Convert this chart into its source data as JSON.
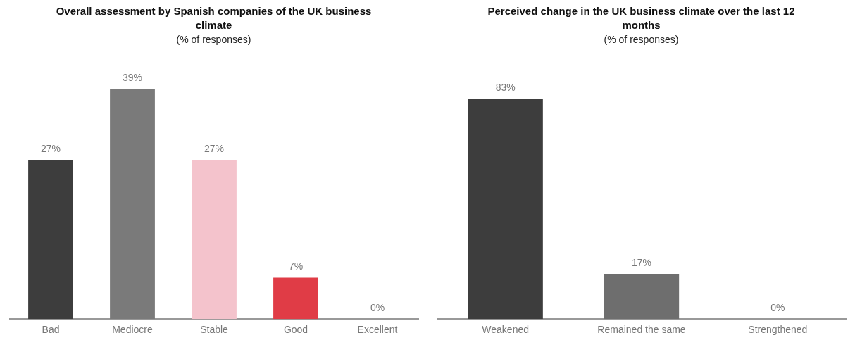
{
  "chart_data": [
    {
      "type": "bar",
      "title": "Overall assessment by Spanish companies of the UK business climate",
      "subtitle": "(% of responses)",
      "categories": [
        "Bad",
        "Mediocre",
        "Stable",
        "Good",
        "Excellent"
      ],
      "values": [
        27,
        39,
        27,
        7,
        0
      ],
      "colors": [
        "#3d3d3d",
        "#7a7a7a",
        "#f4c3cc",
        "#e03c46",
        "#c8c8c8"
      ],
      "value_labels": [
        "27%",
        "39%",
        "27%",
        "7%",
        "0%"
      ],
      "tick_labels": "x",
      "grid": false,
      "legend": false
    },
    {
      "type": "bar",
      "title": "Perceived change in the UK business climate over the last 12 months",
      "subtitle": "(% of responses)",
      "categories": [
        "Weakened",
        "Remained the same",
        "Strengthened"
      ],
      "values": [
        83,
        17,
        0
      ],
      "colors": [
        "#3d3d3d",
        "#6e6e6e",
        "#c8c8c8"
      ],
      "value_labels": [
        "83%",
        "17%",
        "0%"
      ],
      "tick_labels": "x",
      "grid": false,
      "legend": false
    }
  ]
}
